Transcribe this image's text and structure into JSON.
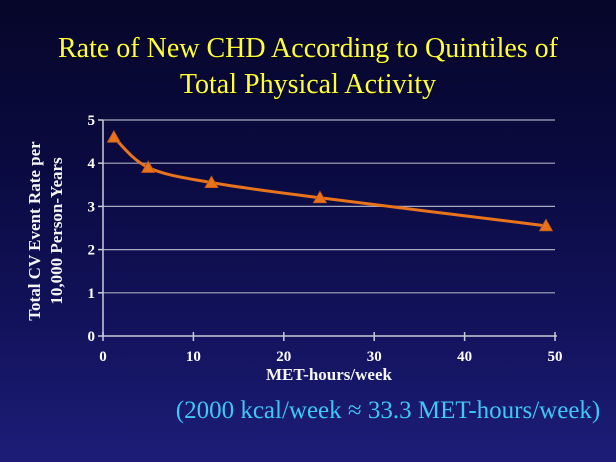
{
  "slide": {
    "title_line1": "Rate of New CHD According to Quintiles of",
    "title_line2": "Total Physical Activity",
    "footnote": "(2000 kcal/week ≈ 33.3 MET-hours/week)"
  },
  "colors": {
    "background_top": "#06062a",
    "background_bottom": "#1d1d78",
    "title_text": "#ffff33",
    "footnote_text": "#3fc8f5",
    "axis_text": "#ffffff",
    "gridline": "#a8aabf",
    "axis_line": "#c9cbd9",
    "line": "#e8731c",
    "marker_fill": "#e8731c",
    "marker_edge": "#c05a18"
  },
  "chart_data": {
    "type": "line",
    "title": "Rate of New CHD According to Quintiles of Total Physical Activity",
    "xlabel": "MET-hours/week",
    "ylabel": "Total CV Event Rate per 10,000 Person-Years",
    "ylabel_line1": "Total CV Event Rate per",
    "ylabel_line2": "10,000 Person-Years",
    "x": [
      1.2,
      5,
      12,
      24,
      49
    ],
    "y": [
      4.6,
      3.9,
      3.55,
      3.2,
      2.55
    ],
    "xlim": [
      0,
      50
    ],
    "ylim": [
      0,
      5
    ],
    "xticks": [
      0,
      10,
      20,
      30,
      40,
      50
    ],
    "yticks": [
      0,
      1,
      2,
      3,
      4,
      5
    ],
    "grid": "horizontal",
    "legend": "none",
    "marker": "triangle",
    "line_smoothing": "smooth"
  }
}
